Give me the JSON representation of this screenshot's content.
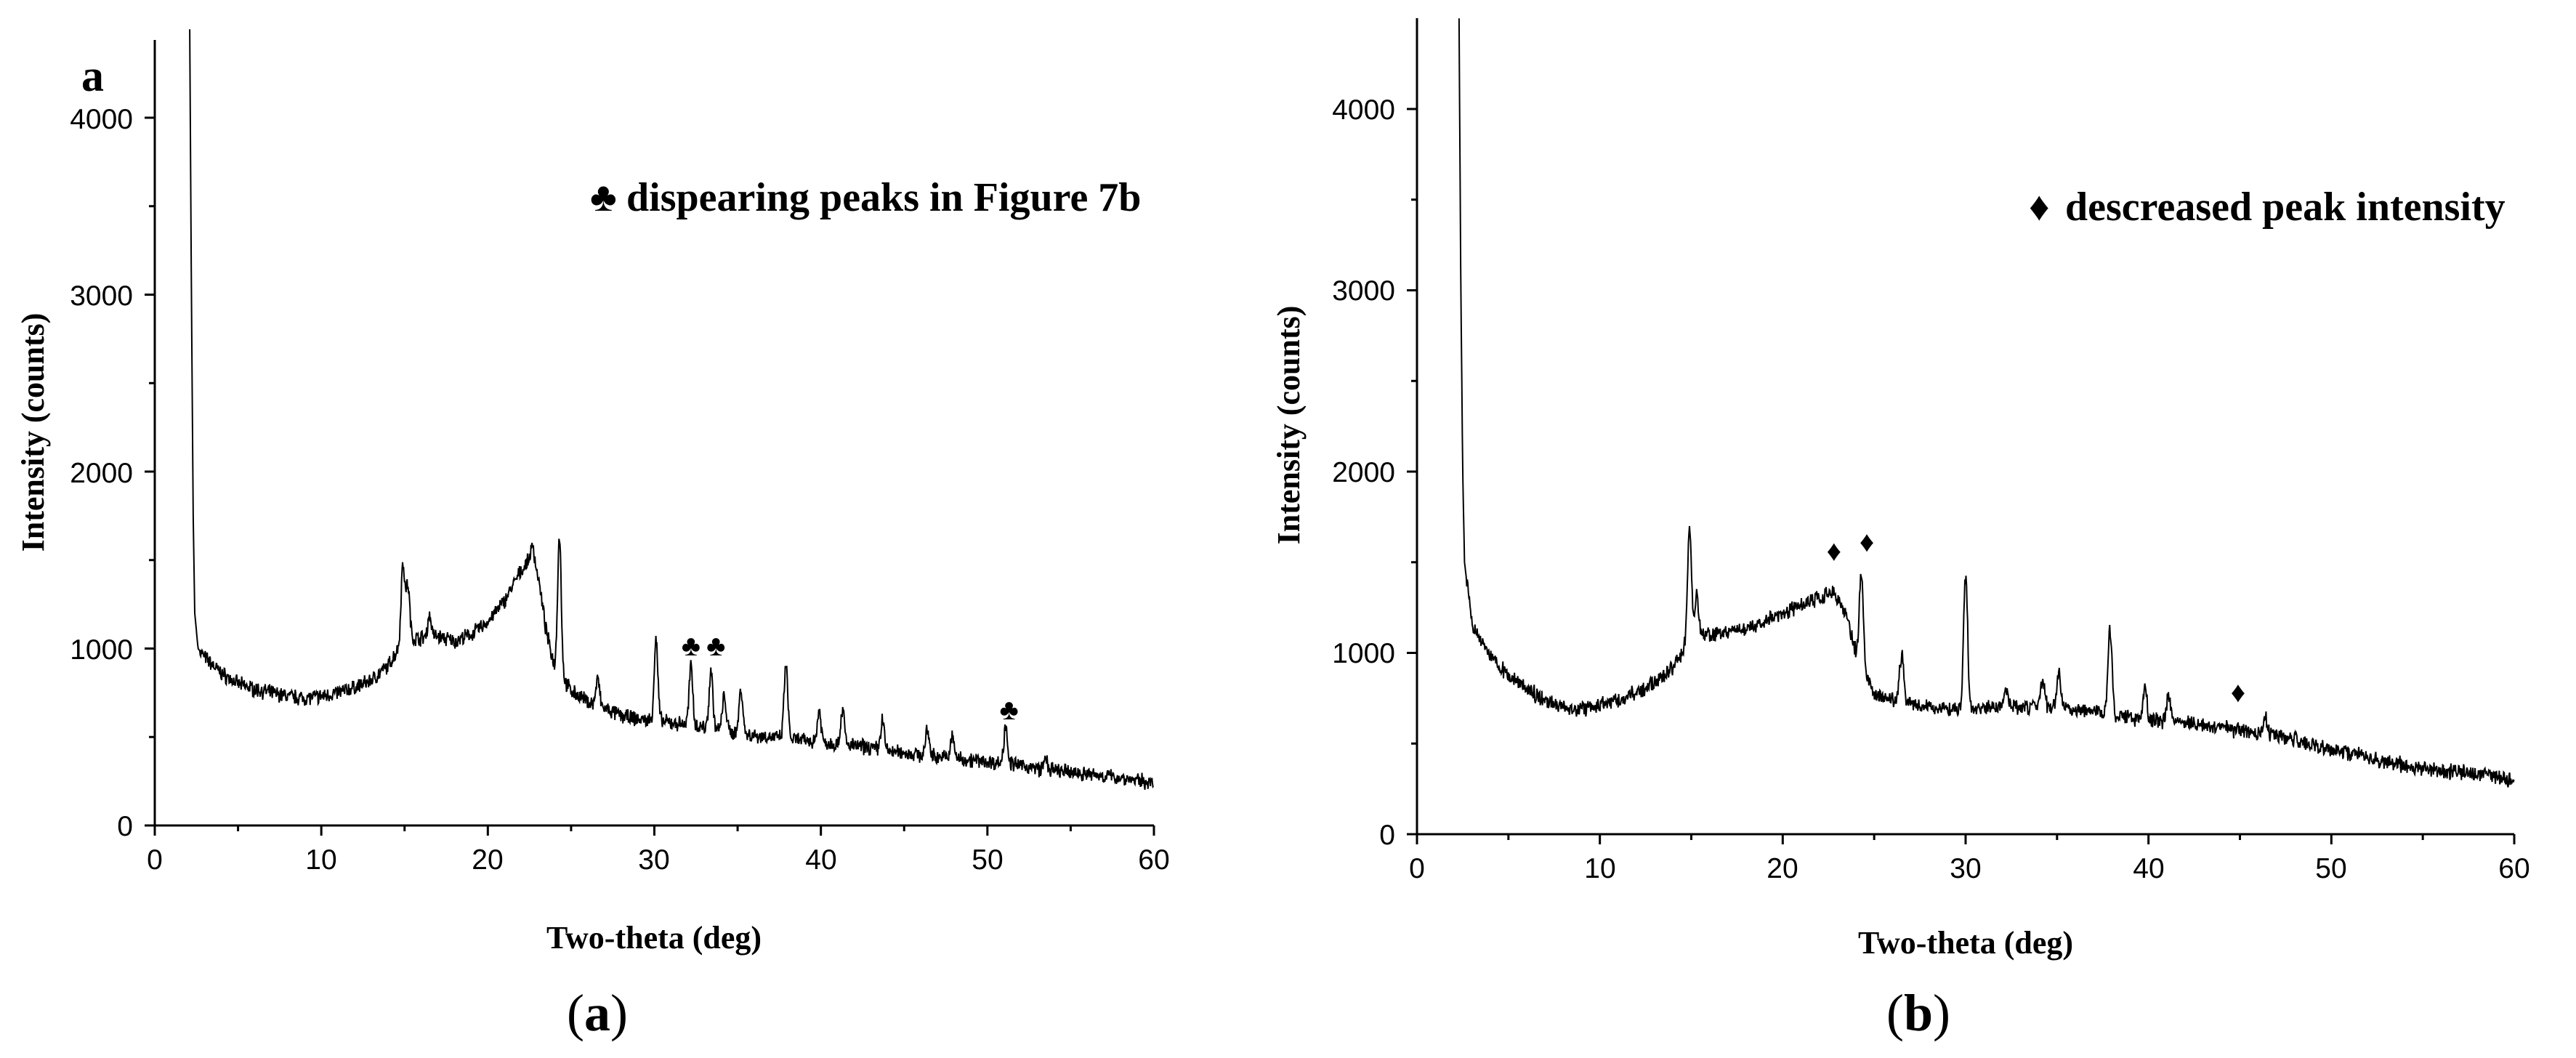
{
  "chart_data": [
    {
      "type": "line",
      "panel_letter": "a",
      "caption": {
        "open": "(",
        "letter": "a",
        "close": ")"
      },
      "xlabel": "Two-theta (deg)",
      "ylabel": "Intensity (counts)",
      "xlim": [
        0,
        60
      ],
      "ylim": [
        0,
        4600
      ],
      "xticks": [
        "0",
        "10",
        "20",
        "30",
        "40",
        "50",
        "60"
      ],
      "yticks": [
        "0",
        "1000",
        "2000",
        "3000",
        "4000"
      ],
      "legend": {
        "symbol": "♣",
        "text": "dispearing peaks in Figure 7b",
        "placement": "top-right"
      },
      "baseline": [
        [
          2.1,
          4500
        ],
        [
          2.2,
          3000
        ],
        [
          2.3,
          1800
        ],
        [
          2.4,
          1200
        ],
        [
          2.6,
          1000
        ],
        [
          3,
          950
        ],
        [
          4,
          860
        ],
        [
          5,
          800
        ],
        [
          6,
          770
        ],
        [
          7,
          750
        ],
        [
          8,
          730
        ],
        [
          9,
          720
        ],
        [
          10,
          730
        ],
        [
          11,
          750
        ],
        [
          12,
          780
        ],
        [
          13,
          820
        ],
        [
          14,
          900
        ],
        [
          14.5,
          980
        ],
        [
          15,
          1050
        ],
        [
          16,
          1060
        ],
        [
          17,
          1070
        ],
        [
          18,
          1040
        ],
        [
          19,
          1080
        ],
        [
          20,
          1150
        ],
        [
          21,
          1270
        ],
        [
          22,
          1440
        ],
        [
          22.5,
          1500
        ],
        [
          23,
          1420
        ],
        [
          23.5,
          1100
        ],
        [
          24,
          900
        ],
        [
          25,
          760
        ],
        [
          26,
          700
        ],
        [
          27,
          660
        ],
        [
          28,
          620
        ],
        [
          29,
          600
        ],
        [
          30,
          590
        ],
        [
          31,
          580
        ],
        [
          32,
          570
        ],
        [
          33,
          555
        ],
        [
          34,
          540
        ],
        [
          35,
          520
        ],
        [
          36,
          510
        ],
        [
          37,
          500
        ],
        [
          38,
          490
        ],
        [
          39,
          480
        ],
        [
          40,
          470
        ],
        [
          41,
          460
        ],
        [
          42,
          450
        ],
        [
          43,
          440
        ],
        [
          44,
          420
        ],
        [
          45,
          410
        ],
        [
          46,
          400
        ],
        [
          47,
          390
        ],
        [
          48,
          380
        ],
        [
          49,
          370
        ],
        [
          50,
          360
        ],
        [
          51,
          350
        ],
        [
          52,
          340
        ],
        [
          53,
          320
        ],
        [
          54,
          310
        ],
        [
          55,
          300
        ],
        [
          56,
          290
        ],
        [
          57,
          280
        ],
        [
          58,
          270
        ],
        [
          59,
          255
        ],
        [
          60,
          240
        ]
      ],
      "peaks": [
        [
          14.9,
          440
        ],
        [
          15.2,
          300
        ],
        [
          16.5,
          120
        ],
        [
          22.7,
          110
        ],
        [
          24.3,
          780
        ],
        [
          26.6,
          150
        ],
        [
          30.1,
          460
        ],
        [
          32.2,
          330
        ],
        [
          33.4,
          330
        ],
        [
          34.2,
          200
        ],
        [
          35.2,
          260
        ],
        [
          37.9,
          420
        ],
        [
          39.9,
          180
        ],
        [
          41.3,
          200
        ],
        [
          43.7,
          170
        ],
        [
          46.4,
          140
        ],
        [
          47.9,
          120
        ],
        [
          51.1,
          220
        ],
        [
          53.5,
          60
        ]
      ],
      "markers": [
        {
          "x": 32.2,
          "y": 960,
          "symbol": "♣"
        },
        {
          "x": 33.7,
          "y": 960,
          "symbol": "♣"
        },
        {
          "x": 51.3,
          "y": 600,
          "symbol": "♣"
        }
      ]
    },
    {
      "type": "line",
      "panel_letter": "",
      "caption": {
        "open": "(",
        "letter": "b",
        "close": ")"
      },
      "xlabel": "Two-theta (deg)",
      "ylabel": "Intensity (counts)",
      "xlim": [
        0,
        60
      ],
      "ylim": [
        0,
        4500
      ],
      "xticks": [
        "0",
        "10",
        "20",
        "30",
        "40",
        "50",
        "60"
      ],
      "yticks": [
        "0",
        "1000",
        "2000",
        "3000",
        "4000"
      ],
      "legend": {
        "symbol": "♦",
        "text": "descreased peak intensity",
        "placement": "top-right"
      },
      "baseline": [
        [
          2.3,
          4500
        ],
        [
          2.4,
          3000
        ],
        [
          2.5,
          2000
        ],
        [
          2.6,
          1500
        ],
        [
          3,
          1150
        ],
        [
          4,
          980
        ],
        [
          5,
          880
        ],
        [
          6,
          800
        ],
        [
          7,
          740
        ],
        [
          8,
          700
        ],
        [
          9,
          690
        ],
        [
          10,
          710
        ],
        [
          11,
          740
        ],
        [
          12,
          780
        ],
        [
          13,
          830
        ],
        [
          14,
          920
        ],
        [
          14.5,
          1000
        ],
        [
          15,
          1080
        ],
        [
          16,
          1100
        ],
        [
          17,
          1110
        ],
        [
          18,
          1130
        ],
        [
          19,
          1170
        ],
        [
          20,
          1220
        ],
        [
          21,
          1260
        ],
        [
          22,
          1300
        ],
        [
          22.8,
          1330
        ],
        [
          23.5,
          1200
        ],
        [
          24,
          1000
        ],
        [
          24.5,
          880
        ],
        [
          25,
          780
        ],
        [
          26,
          740
        ],
        [
          27,
          720
        ],
        [
          28,
          700
        ],
        [
          29,
          690
        ],
        [
          30,
          690
        ],
        [
          31,
          690
        ],
        [
          32,
          700
        ],
        [
          33,
          700
        ],
        [
          34,
          710
        ],
        [
          35,
          700
        ],
        [
          36,
          680
        ],
        [
          37,
          680
        ],
        [
          38,
          660
        ],
        [
          39,
          640
        ],
        [
          40,
          630
        ],
        [
          41,
          620
        ],
        [
          42,
          610
        ],
        [
          43,
          600
        ],
        [
          44,
          590
        ],
        [
          45,
          570
        ],
        [
          46,
          560
        ],
        [
          47,
          540
        ],
        [
          48,
          520
        ],
        [
          49,
          500
        ],
        [
          50,
          470
        ],
        [
          51,
          450
        ],
        [
          52,
          430
        ],
        [
          53,
          400
        ],
        [
          54,
          380
        ],
        [
          55,
          360
        ],
        [
          56,
          350
        ],
        [
          57,
          340
        ],
        [
          58,
          330
        ],
        [
          59,
          315
        ],
        [
          60,
          300
        ]
      ],
      "peaks": [
        [
          14.9,
          620
        ],
        [
          15.3,
          220
        ],
        [
          24.3,
          520
        ],
        [
          26.5,
          260
        ],
        [
          30.0,
          730
        ],
        [
          32.2,
          100
        ],
        [
          34.2,
          140
        ],
        [
          35.1,
          200
        ],
        [
          37.9,
          470
        ],
        [
          39.8,
          180
        ],
        [
          41.1,
          140
        ],
        [
          46.4,
          90
        ]
      ],
      "markers": [
        {
          "x": 22.8,
          "y": 1510,
          "symbol": "♦"
        },
        {
          "x": 24.6,
          "y": 1560,
          "symbol": "♦"
        },
        {
          "x": 44.9,
          "y": 730,
          "symbol": "♦"
        }
      ]
    }
  ]
}
